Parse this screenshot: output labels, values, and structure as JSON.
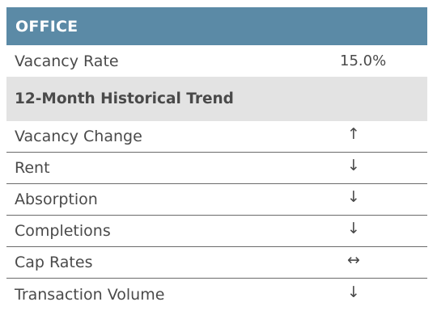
{
  "header": {
    "title": "OFFICE"
  },
  "vacancy": {
    "label": "Vacancy Rate",
    "value": "15.0%"
  },
  "trend": {
    "title": "12-Month Historical Trend",
    "rows": [
      {
        "label": "Vacancy Change",
        "arrow": "↑",
        "icon": "arrow-up-icon"
      },
      {
        "label": "Rent",
        "arrow": "↓",
        "icon": "arrow-down-icon"
      },
      {
        "label": "Absorption",
        "arrow": "↓",
        "icon": "arrow-down-icon"
      },
      {
        "label": "Completions",
        "arrow": "↓",
        "icon": "arrow-down-icon"
      },
      {
        "label": "Cap Rates",
        "arrow": "↔",
        "icon": "arrow-left-right-icon"
      },
      {
        "label": "Transaction Volume",
        "arrow": "↓",
        "icon": "arrow-down-icon"
      }
    ]
  },
  "colors": {
    "header_bg": "#5b8aa6",
    "section_bg": "#e3e3e3",
    "text": "#4a4a4a"
  }
}
